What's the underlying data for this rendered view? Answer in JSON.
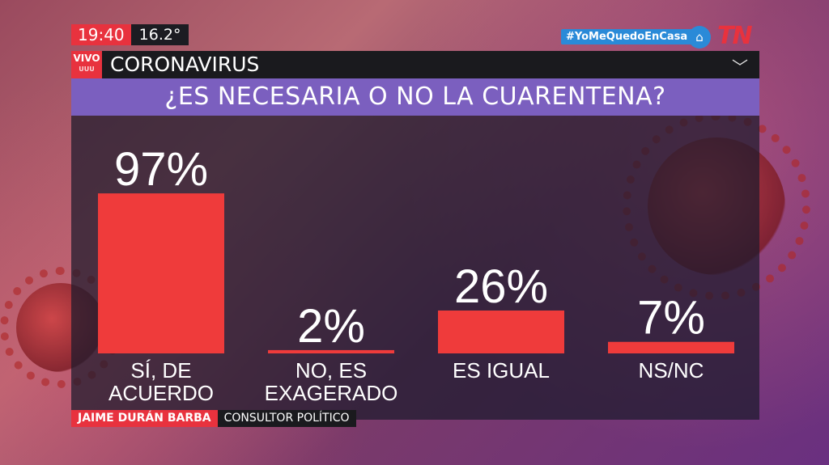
{
  "header": {
    "time": "19:40",
    "temperature": "16.2°",
    "hashtag": "#YoMeQuedoEnCasa",
    "logo": "TN",
    "live_label": "VIVO",
    "live_sub": "UUU",
    "section": "CORONAVIRUS"
  },
  "question": "¿ES NECESARIA O NO LA CUARENTENA?",
  "chart_data": {
    "type": "bar",
    "categories": [
      [
        "SÍ, DE",
        "ACUERDO"
      ],
      [
        "NO, ES",
        "EXAGERADO"
      ],
      [
        "ES IGUAL"
      ],
      [
        "NS/NC"
      ]
    ],
    "values": [
      97,
      2,
      26,
      7
    ],
    "value_labels": [
      "97%",
      "2%",
      "26%",
      "7%"
    ],
    "ylim": [
      0,
      100
    ],
    "bar_color": "#ef3b3b",
    "grid": false
  },
  "lower_third": {
    "name": "JAIME DURÁN BARBA",
    "role": "CONSULTOR POLÍTICO"
  },
  "colors": {
    "accent_red": "#e8323e",
    "question_purple": "#7b5fbf",
    "hashtag_blue": "#2a8ad8"
  }
}
